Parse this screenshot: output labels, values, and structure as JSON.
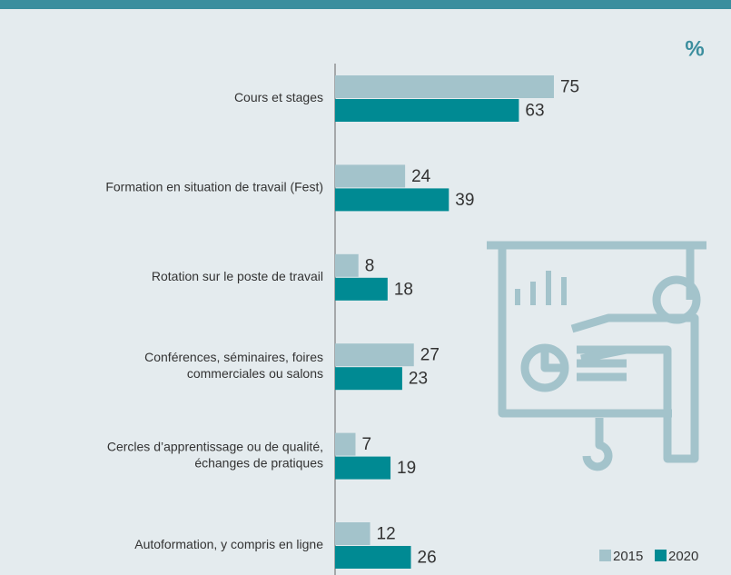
{
  "chart_data": {
    "type": "bar",
    "orientation": "horizontal",
    "unit_label": "%",
    "categories": [
      [
        "Cours et stages"
      ],
      [
        "Formation en situation de travail (Fest)"
      ],
      [
        "Rotation sur le poste de travail"
      ],
      [
        "Conférences, séminaires, foires",
        "commerciales ou salons"
      ],
      [
        "Cercles d’apprentissage ou de qualité,",
        "échanges de pratiques"
      ],
      [
        "Autoformation, y compris en ligne"
      ]
    ],
    "series": [
      {
        "name": "2015",
        "color": "#a3c3cb",
        "values": [
          75,
          24,
          8,
          27,
          7,
          12
        ]
      },
      {
        "name": "2020",
        "color": "#008a93",
        "values": [
          63,
          39,
          18,
          23,
          19,
          26
        ]
      }
    ]
  }
}
